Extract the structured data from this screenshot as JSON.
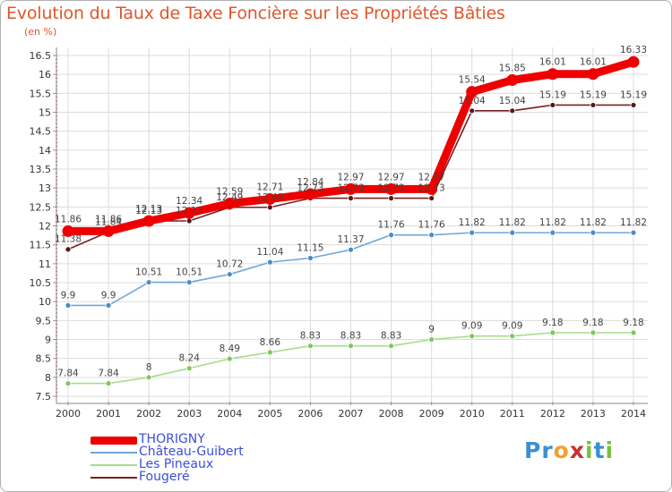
{
  "chart_data": {
    "type": "line",
    "title": "Evolution du Taux de Taxe Foncière sur les Propriétés Bâties",
    "ylabel": "(en %)",
    "xlabel": "",
    "ylim": [
      7.5,
      16.5
    ],
    "yticks": [
      "7.5",
      "8",
      "8.5",
      "9",
      "9.5",
      "10",
      "10.5",
      "11",
      "11.5",
      "12",
      "12.5",
      "13",
      "13.5",
      "14",
      "14.5",
      "15",
      "15.5",
      "16",
      "16.5"
    ],
    "categories": [
      "2000",
      "2001",
      "2002",
      "2003",
      "2004",
      "2005",
      "2006",
      "2007",
      "2008",
      "2009",
      "2010",
      "2011",
      "2012",
      "2013",
      "2014"
    ],
    "series": [
      {
        "name": "Fougeré",
        "color": "#7a1f1f",
        "marker": "#5a1515",
        "values": [
          11.38,
          11.84,
          12.13,
          12.13,
          12.49,
          12.49,
          12.73,
          12.73,
          12.73,
          12.73,
          15.04,
          15.04,
          15.19,
          15.19,
          15.19
        ],
        "labels": [
          "11.38",
          "11.84",
          "12.13",
          "12.13",
          "12.49",
          "12.49",
          "12.73",
          "12.73",
          "12.73",
          "12.73",
          "15.04",
          "15.04",
          "15.19",
          "15.19",
          "15.19"
        ]
      },
      {
        "name": "Les Pineaux",
        "color": "#a6dd8a",
        "marker": "#7cc95a",
        "values": [
          7.84,
          7.84,
          8,
          8.24,
          8.49,
          8.66,
          8.83,
          8.83,
          8.83,
          9,
          9.09,
          9.09,
          9.18,
          9.18,
          9.18
        ],
        "labels": [
          "7.84",
          "7.84",
          "8",
          "8.24",
          "8.49",
          "8.66",
          "8.83",
          "8.83",
          "8.83",
          "9",
          "9.09",
          "9.09",
          "9.18",
          "9.18",
          "9.18"
        ]
      },
      {
        "name": "Château-Guibert",
        "color": "#6fa6d6",
        "marker": "#4a8cc8",
        "values": [
          9.9,
          9.9,
          10.51,
          10.51,
          10.72,
          11.04,
          11.15,
          11.37,
          11.76,
          11.76,
          11.82,
          11.82,
          11.82,
          11.82,
          11.82
        ],
        "labels": [
          "9.9",
          "9.9",
          "10.51",
          "10.51",
          "10.72",
          "11.04",
          "11.15",
          "11.37",
          "11.76",
          "11.76",
          "11.82",
          "11.82",
          "11.82",
          "11.82",
          "11.82"
        ]
      },
      {
        "name": "THORIGNY",
        "color": "#ee0000",
        "marker": "#ee0000",
        "values": [
          11.86,
          11.86,
          12.13,
          12.34,
          12.59,
          12.71,
          12.84,
          12.97,
          12.97,
          12.97,
          15.54,
          15.85,
          16.01,
          16.01,
          16.33
        ],
        "labels": [
          "11.86",
          "11.86",
          "12.13",
          "12.34",
          "12.59",
          "12.71",
          "12.84",
          "12.97",
          "12.97",
          "12.97",
          "15.54",
          "15.85",
          "16.01",
          "16.01",
          "16.33"
        ]
      }
    ],
    "legend_order": [
      "THORIGNY",
      "Château-Guibert",
      "Les Pineaux",
      "Fougeré"
    ],
    "legend_position": "bottom-left"
  },
  "legend": {
    "thorigny": "THORIGNY",
    "chateau": "Château-Guibert",
    "pineaux": "Les Pineaux",
    "fougere": "Fougeré"
  },
  "colors": {
    "title": "#e0562a",
    "legend_text": "#3b4fd8",
    "thorigny": "#ee0000",
    "chateau": "#6fa6d6",
    "pineaux": "#a6dd8a",
    "fougere": "#7a1f1f",
    "grid": "#dcdcdc"
  },
  "brand": {
    "text": "Proxiti",
    "letters": [
      "P",
      "r",
      "o",
      "x",
      "i",
      "t",
      "i"
    ],
    "letter_colors": [
      "#3a8fd4",
      "#3a8fd4",
      "#f0a030",
      "#c83030",
      "#7cbf3a",
      "#3a8fd4",
      "#7cbf3a"
    ]
  }
}
